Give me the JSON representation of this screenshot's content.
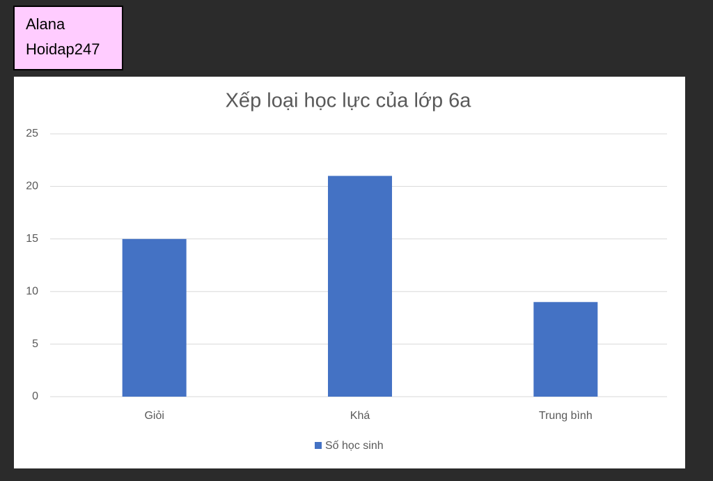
{
  "label": {
    "lines": [
      "Alana",
      "Hoidap247"
    ]
  },
  "chart_data": {
    "type": "bar",
    "title": "Xếp loại học lực của lớp 6a",
    "categories": [
      "Giỏi",
      "Khá",
      "Trung bình"
    ],
    "series": [
      {
        "name": "Số học sinh",
        "color": "#4472c4",
        "values": [
          15,
          21,
          9
        ]
      }
    ],
    "ylim": [
      0,
      25
    ],
    "yticks": [
      0,
      5,
      10,
      15,
      20,
      25
    ],
    "grid": true,
    "legend": "bottom"
  }
}
